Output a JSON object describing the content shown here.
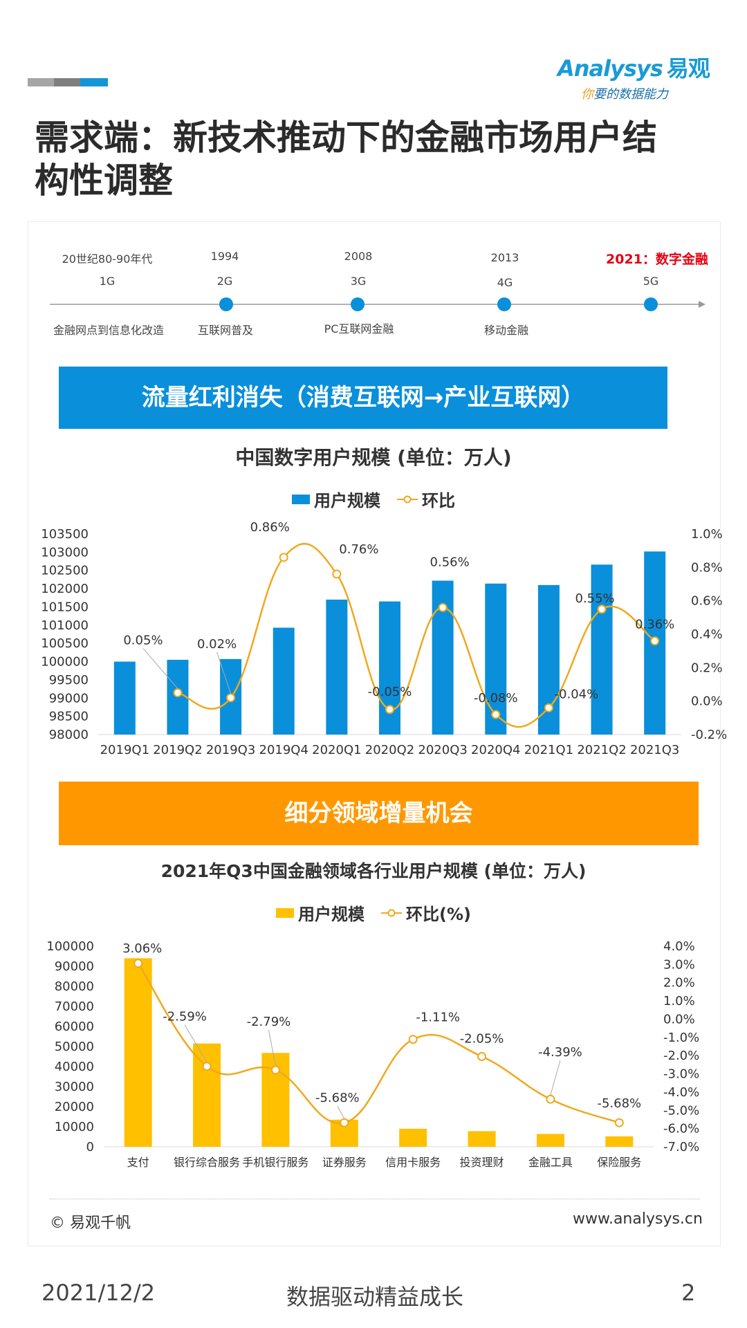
{
  "header": {
    "bar_colors": [
      "#a6a6a6",
      "#7f7f7f",
      "#1496d6"
    ],
    "logo_text": "Analysys",
    "logo_cn": "易观",
    "logo_slogan_first": "你",
    "logo_slogan_rest": "要的数据能力"
  },
  "title": {
    "line1": "需求端：新技术推动下的金融市场用户结",
    "line2": "构性调整"
  },
  "timeline": {
    "items": [
      {
        "period": "20世纪80-90年代",
        "gen": "1G",
        "label": "金融网点到信息化改造"
      },
      {
        "period": "1994",
        "gen": "2G",
        "label": "互联网普及"
      },
      {
        "period": "2008",
        "gen": "3G",
        "label": "PC互联网金融"
      },
      {
        "period": "2013",
        "gen": "4G",
        "label": "移动金融"
      },
      {
        "period": "2021：数字金融",
        "gen": "5G",
        "label": ""
      }
    ],
    "dot_color": "#0a8fdb",
    "highlight_color": "#e60012"
  },
  "band1": {
    "text": "流量红利消失（消费互联网→产业互联网）",
    "color": "#0a8fdb"
  },
  "band2": {
    "text": "细分领域增量机会",
    "color": "#ff9800"
  },
  "chart_data": [
    {
      "type": "bar",
      "title": "中国数字用户规模 (单位：万人)",
      "legend": [
        "用户规模",
        "环比"
      ],
      "categories": [
        "2019Q1",
        "2019Q2",
        "2019Q3",
        "2019Q4",
        "2020Q1",
        "2020Q2",
        "2020Q3",
        "2020Q4",
        "2021Q1",
        "2021Q2",
        "2021Q3"
      ],
      "series": [
        {
          "name": "用户规模",
          "kind": "bar",
          "axis": "left",
          "color": "#0a8fdb",
          "values": [
            100000,
            100050,
            100070,
            100930,
            101700,
            101650,
            102220,
            102140,
            102100,
            102660,
            103020
          ]
        },
        {
          "name": "环比",
          "kind": "line",
          "axis": "right",
          "color": "#f0a81c",
          "unit": "%",
          "values": [
            null,
            0.05,
            0.02,
            0.86,
            0.76,
            -0.05,
            0.56,
            -0.08,
            -0.04,
            0.55,
            0.36
          ],
          "labels": [
            "",
            "0.05%",
            "0.02%",
            "0.86%",
            "0.76%",
            "-0.05%",
            "0.56%",
            "-0.08%",
            "-0.04%",
            "0.55%",
            "0.36%"
          ]
        }
      ],
      "yleft": {
        "min": 98000,
        "max": 103500,
        "step": 500
      },
      "yright": {
        "min": -0.2,
        "max": 1.0,
        "step": 0.2
      },
      "yright_ticks": [
        "-0.2%",
        "0.0%",
        "0.2%",
        "0.4%",
        "0.6%",
        "0.8%",
        "1.0%"
      ]
    },
    {
      "type": "bar",
      "title": "2021年Q3中国金融领域各行业用户规模 (单位：万人)",
      "legend": [
        "用户规模",
        "环比(%)"
      ],
      "categories": [
        "支付",
        "银行综合服务",
        "手机银行服务",
        "证券服务",
        "信用卡服务",
        "投资理财",
        "金融工具",
        "保险服务"
      ],
      "series": [
        {
          "name": "用户规模",
          "kind": "bar",
          "axis": "left",
          "color": "#ffc000",
          "values": [
            94000,
            51500,
            46800,
            13500,
            9000,
            7800,
            6400,
            5200
          ]
        },
        {
          "name": "环比(%)",
          "kind": "line",
          "axis": "right",
          "color": "#f0a81c",
          "unit": "%",
          "values": [
            3.06,
            -2.59,
            -2.79,
            -5.68,
            -1.11,
            -2.05,
            -4.39,
            -5.68
          ],
          "labels": [
            "3.06%",
            "-2.59%",
            "-2.79%",
            "-5.68%",
            "-1.11%",
            "-2.05%",
            "-4.39%",
            "-5.68%"
          ]
        }
      ],
      "yleft": {
        "min": 0,
        "max": 100000,
        "step": 10000
      },
      "yright": {
        "min": -7.0,
        "max": 4.0,
        "step": 1.0
      },
      "yright_ticks": [
        "-7.0%",
        "-6.0%",
        "-5.0%",
        "-4.0%",
        "-3.0%",
        "-2.0%",
        "-1.0%",
        "0.0%",
        "1.0%",
        "2.0%",
        "3.0%",
        "4.0%"
      ]
    }
  ],
  "footer": {
    "copyright": "© 易观千帆",
    "url": "www.analysys.cn",
    "date": "2021/12/2",
    "slogan": "数据驱动精益成长",
    "page": "2"
  }
}
